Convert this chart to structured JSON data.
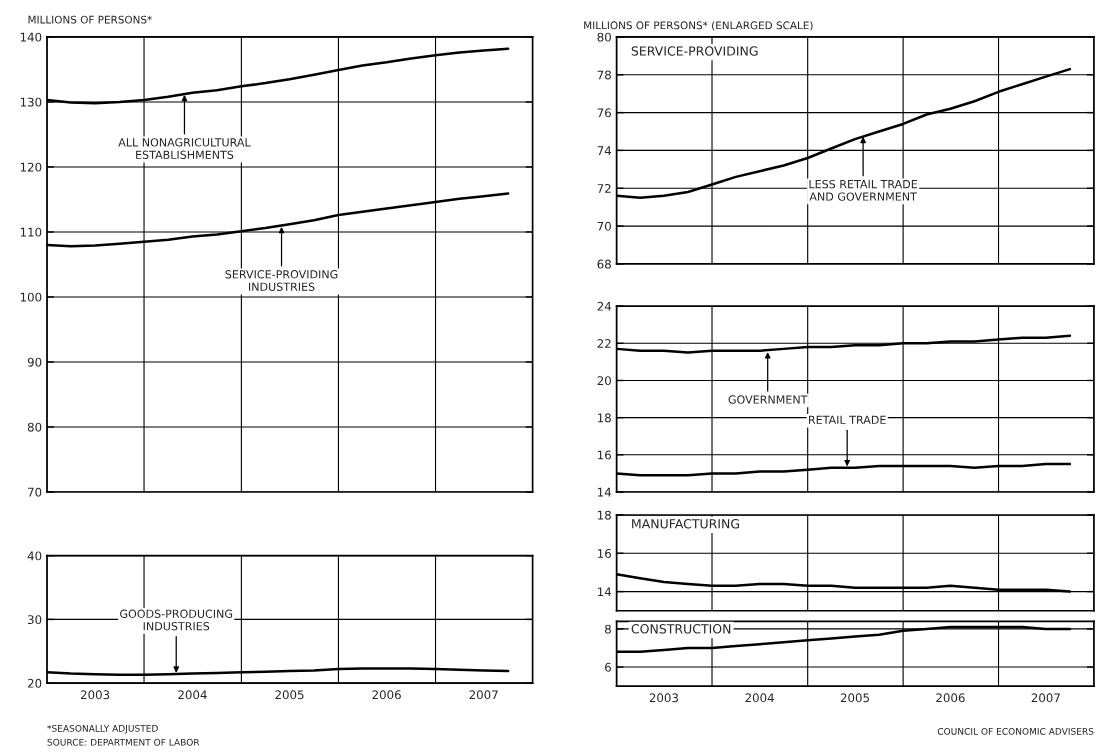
{
  "chart_data": [
    {
      "type": "line",
      "subtitle": "MILLIONS OF PERSONS*",
      "x": [
        "2003-01",
        "2003-04",
        "2003-07",
        "2003-10",
        "2004-01",
        "2004-04",
        "2004-07",
        "2004-10",
        "2005-01",
        "2005-04",
        "2005-07",
        "2005-10",
        "2006-01",
        "2006-04",
        "2006-07",
        "2006-10",
        "2007-01",
        "2007-04",
        "2007-07",
        "2007-10"
      ],
      "series": [
        {
          "color": "#000000",
          "values": [
            130.3,
            129.9,
            129.8,
            130.0,
            130.3,
            130.8,
            131.4,
            131.8,
            132.4,
            132.9,
            133.5,
            134.2,
            134.9,
            135.6,
            136.1,
            136.7,
            137.2,
            137.6,
            137.9,
            138.2
          ]
        },
        {
          "color": "#000000",
          "values": [
            108.0,
            107.8,
            107.9,
            108.2,
            108.5,
            108.8,
            109.3,
            109.6,
            110.1,
            110.6,
            111.2,
            111.8,
            112.6,
            113.1,
            113.6,
            114.1,
            114.6,
            115.1,
            115.5,
            115.9
          ]
        }
      ],
      "xlim": [
        "2003-01",
        "2008-01"
      ],
      "xticks": [
        {
          "value": "2003-01",
          "label": null
        },
        {
          "value": "2004-01",
          "label": null
        },
        {
          "value": "2005-01",
          "label": null
        },
        {
          "value": "2006-01",
          "label": null
        },
        {
          "value": "2007-01",
          "label": null
        },
        {
          "value": "2008-01",
          "label": null
        }
      ],
      "ylim": [
        70,
        140
      ],
      "yticks": [
        70,
        80,
        90,
        100,
        110,
        120,
        130,
        140
      ],
      "grid": true,
      "tick_labels": "y",
      "annotations": [
        {
          "text": "ALL NONAGRICULTURAL\nESTABLISHMENTS",
          "x": "2004-06",
          "y": 131.3
        },
        {
          "text": "SERVICE-PROVIDING\nINDUSTRIES",
          "x": "2005-06",
          "y": 111.0
        }
      ]
    },
    {
      "type": "line",
      "x": [
        "2003-01",
        "2003-04",
        "2003-07",
        "2003-10",
        "2004-01",
        "2004-04",
        "2004-07",
        "2004-10",
        "2005-01",
        "2005-04",
        "2005-07",
        "2005-10",
        "2006-01",
        "2006-04",
        "2006-07",
        "2006-10",
        "2007-01",
        "2007-04",
        "2007-07",
        "2007-10"
      ],
      "series": [
        {
          "color": "#000000",
          "values": [
            21.7,
            21.5,
            21.4,
            21.3,
            21.3,
            21.4,
            21.5,
            21.6,
            21.7,
            21.8,
            21.9,
            22.0,
            22.2,
            22.3,
            22.3,
            22.3,
            22.2,
            22.1,
            22.0,
            21.9
          ]
        }
      ],
      "xlim": [
        "2003-01",
        "2008-01"
      ],
      "xticks": [
        {
          "value": "2003-01",
          "label": null
        },
        {
          "value": "2004-01",
          "label": null
        },
        {
          "value": "2005-01",
          "label": null
        },
        {
          "value": "2006-01",
          "label": null
        },
        {
          "value": "2007-01",
          "label": null
        },
        {
          "value": "2008-01",
          "label": null
        },
        {
          "value": "2003-07",
          "label": "2003"
        },
        {
          "value": "2004-07",
          "label": "2004"
        },
        {
          "value": "2005-07",
          "label": "2005"
        },
        {
          "value": "2006-07",
          "label": "2006"
        },
        {
          "value": "2007-07",
          "label": "2007"
        }
      ],
      "ylim": [
        20,
        40
      ],
      "yticks": [
        20,
        30,
        40
      ],
      "grid": true,
      "annotations": [
        {
          "text": "GOODS-PRODUCING\nINDUSTRIES",
          "x": "2004-05",
          "y": 21.4
        },
        "*SEASONALLY ADJUSTED",
        "SOURCE: DEPARTMENT OF LABOR"
      ]
    },
    {
      "type": "line",
      "subtitle": "MILLIONS OF PERSONS* (ENLARGED SCALE)",
      "title": "SERVICE-PROVIDING",
      "x": [
        "2003-01",
        "2003-04",
        "2003-07",
        "2003-10",
        "2004-01",
        "2004-04",
        "2004-07",
        "2004-10",
        "2005-01",
        "2005-04",
        "2005-07",
        "2005-10",
        "2006-01",
        "2006-04",
        "2006-07",
        "2006-10",
        "2007-01",
        "2007-04",
        "2007-07",
        "2007-10"
      ],
      "series": [
        {
          "color": "#000000",
          "values": [
            71.6,
            71.5,
            71.6,
            71.8,
            72.2,
            72.6,
            72.9,
            73.2,
            73.6,
            74.1,
            74.6,
            75.0,
            75.4,
            75.9,
            76.2,
            76.6,
            77.1,
            77.5,
            77.9,
            78.3
          ]
        }
      ],
      "xlim": [
        "2003-01",
        "2008-01"
      ],
      "xticks": [
        {
          "value": "2003-01",
          "label": null
        },
        {
          "value": "2004-01",
          "label": null
        },
        {
          "value": "2005-01",
          "label": null
        },
        {
          "value": "2006-01",
          "label": null
        },
        {
          "value": "2007-01",
          "label": null
        },
        {
          "value": "2008-01",
          "label": null
        }
      ],
      "ylim": [
        68,
        80
      ],
      "yticks": [
        68,
        70,
        72,
        74,
        76,
        78,
        80
      ],
      "grid": true,
      "tick_labels": "y",
      "annotations": [
        {
          "text": "LESS RETAIL TRADE\nAND GOVERNMENT",
          "x": "2005-08",
          "y": 74.8
        }
      ]
    },
    {
      "type": "line",
      "x": [
        "2003-01",
        "2003-04",
        "2003-07",
        "2003-10",
        "2004-01",
        "2004-04",
        "2004-07",
        "2004-10",
        "2005-01",
        "2005-04",
        "2005-07",
        "2005-10",
        "2006-01",
        "2006-04",
        "2006-07",
        "2006-10",
        "2007-01",
        "2007-04",
        "2007-07",
        "2007-10"
      ],
      "series": [
        {
          "color": "#000000",
          "values": [
            21.7,
            21.6,
            21.6,
            21.5,
            21.6,
            21.6,
            21.6,
            21.7,
            21.8,
            21.8,
            21.9,
            21.9,
            22.0,
            22.0,
            22.1,
            22.1,
            22.2,
            22.3,
            22.3,
            22.4
          ]
        },
        {
          "color": "#000000",
          "values": [
            15.0,
            14.9,
            14.9,
            14.9,
            15.0,
            15.0,
            15.1,
            15.1,
            15.2,
            15.3,
            15.3,
            15.4,
            15.4,
            15.4,
            15.4,
            15.3,
            15.4,
            15.4,
            15.5,
            15.5
          ]
        }
      ],
      "xlim": [
        "2003-01",
        "2008-01"
      ],
      "xticks": [
        {
          "value": "2003-01",
          "label": null
        },
        {
          "value": "2004-01",
          "label": null
        },
        {
          "value": "2005-01",
          "label": null
        },
        {
          "value": "2006-01",
          "label": null
        },
        {
          "value": "2007-01",
          "label": null
        },
        {
          "value": "2008-01",
          "label": null
        }
      ],
      "ylim": [
        14,
        24
      ],
      "yticks": [
        14,
        16,
        18,
        20,
        22,
        24
      ],
      "grid": true,
      "tick_labels": "y",
      "annotations": [
        {
          "text": "GOVERNMENT",
          "x": "2004-08",
          "y": 21.6
        },
        {
          "text": "RETAIL TRADE",
          "x": "2005-06",
          "y": 15.3
        }
      ]
    },
    {
      "type": "line",
      "title": "MANUFACTURING",
      "x": [
        "2003-01",
        "2003-04",
        "2003-07",
        "2003-10",
        "2004-01",
        "2004-04",
        "2004-07",
        "2004-10",
        "2005-01",
        "2005-04",
        "2005-07",
        "2005-10",
        "2006-01",
        "2006-04",
        "2006-07",
        "2006-10",
        "2007-01",
        "2007-04",
        "2007-07",
        "2007-10"
      ],
      "series": [
        {
          "color": "#000000",
          "values": [
            14.9,
            14.7,
            14.5,
            14.4,
            14.3,
            14.3,
            14.4,
            14.4,
            14.3,
            14.3,
            14.2,
            14.2,
            14.2,
            14.2,
            14.3,
            14.2,
            14.1,
            14.1,
            14.1,
            14.0
          ]
        }
      ],
      "xlim": [
        "2003-01",
        "2008-01"
      ],
      "xticks": [
        {
          "value": "2003-01",
          "label": null
        },
        {
          "value": "2004-01",
          "label": null
        },
        {
          "value": "2005-01",
          "label": null
        },
        {
          "value": "2006-01",
          "label": null
        },
        {
          "value": "2007-01",
          "label": null
        },
        {
          "value": "2008-01",
          "label": null
        }
      ],
      "ylim": [
        13,
        18
      ],
      "yticks": [
        14,
        16,
        18
      ],
      "grid": true,
      "tick_labels": "y"
    },
    {
      "type": "line",
      "title": "CONSTRUCTION",
      "x": [
        "2003-01",
        "2003-04",
        "2003-07",
        "2003-10",
        "2004-01",
        "2004-04",
        "2004-07",
        "2004-10",
        "2005-01",
        "2005-04",
        "2005-07",
        "2005-10",
        "2006-01",
        "2006-04",
        "2006-07",
        "2006-10",
        "2007-01",
        "2007-04",
        "2007-07",
        "2007-10"
      ],
      "series": [
        {
          "color": "#000000",
          "values": [
            6.8,
            6.8,
            6.9,
            7.0,
            7.0,
            7.1,
            7.2,
            7.3,
            7.4,
            7.5,
            7.6,
            7.7,
            7.9,
            8.0,
            8.1,
            8.1,
            8.1,
            8.1,
            8.0,
            8.0
          ]
        }
      ],
      "xlim": [
        "2003-01",
        "2008-01"
      ],
      "xticks": [
        {
          "value": "2003-01",
          "label": null
        },
        {
          "value": "2004-01",
          "label": null
        },
        {
          "value": "2005-01",
          "label": null
        },
        {
          "value": "2006-01",
          "label": null
        },
        {
          "value": "2007-01",
          "label": null
        },
        {
          "value": "2008-01",
          "label": null
        },
        {
          "value": "2003-07",
          "label": "2003"
        },
        {
          "value": "2004-07",
          "label": "2004"
        },
        {
          "value": "2005-07",
          "label": "2005"
        },
        {
          "value": "2006-07",
          "label": "2006"
        },
        {
          "value": "2007-07",
          "label": "2007"
        }
      ],
      "ylim": [
        5,
        8.4
      ],
      "yticks": [
        6,
        8
      ],
      "grid": true,
      "annotations": [
        "COUNCIL OF ECONOMIC ADVISERS"
      ]
    }
  ]
}
